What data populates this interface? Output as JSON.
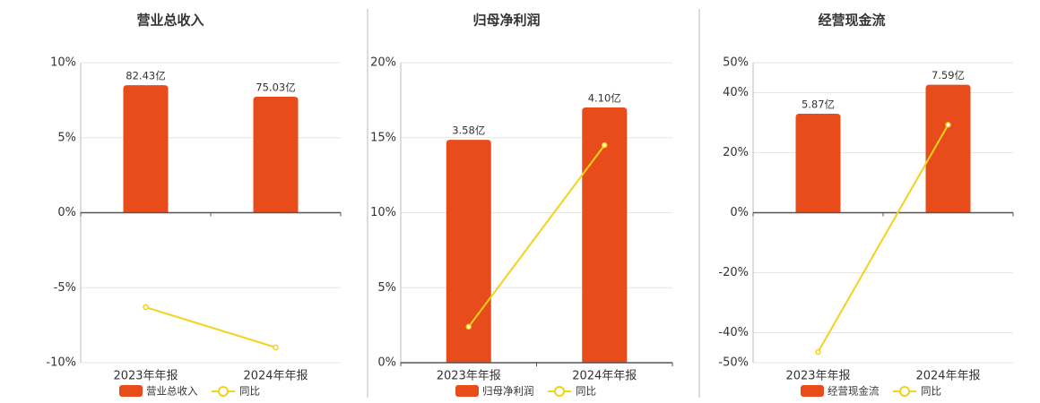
{
  "chart_data": [
    {
      "type": "bar-line",
      "title": "营业总收入",
      "categories": [
        "2023年年报",
        "2024年年报"
      ],
      "series": [
        {
          "name": "营业总收入",
          "color": "#e84c1a",
          "axis": "y2",
          "values": [
            82.43,
            75.03
          ],
          "value_labels": [
            "82.43亿",
            "75.03亿"
          ]
        },
        {
          "name": "同比",
          "color": "#f2d21a",
          "values": [
            -6.3,
            -8.98
          ]
        }
      ],
      "ylim": [
        -10,
        10
      ],
      "yticks": [
        {
          "value": -10,
          "label": "-10%"
        },
        {
          "value": -5,
          "label": "-5%"
        },
        {
          "value": 0,
          "label": "0%"
        },
        {
          "value": 5,
          "label": "5%"
        },
        {
          "value": 10,
          "label": "10%"
        }
      ],
      "y2lim": [
        -97,
        97
      ],
      "grid": true
    },
    {
      "type": "bar-line",
      "title": "归母净利润",
      "categories": [
        "2023年年报",
        "2024年年报"
      ],
      "series": [
        {
          "name": "归母净利润",
          "color": "#e84c1a",
          "axis": "y2",
          "values": [
            3.58,
            4.1
          ],
          "value_labels": [
            "3.58亿",
            "4.10亿"
          ]
        },
        {
          "name": "同比",
          "color": "#f2d21a",
          "values": [
            2.4,
            14.5
          ]
        }
      ],
      "ylim": [
        0,
        20
      ],
      "yticks": [
        {
          "value": 0,
          "label": "0%"
        },
        {
          "value": 5,
          "label": "5%"
        },
        {
          "value": 10,
          "label": "10%"
        },
        {
          "value": 15,
          "label": "15%"
        },
        {
          "value": 20,
          "label": "20%"
        }
      ],
      "y2lim": [
        0,
        4.82
      ],
      "grid": true
    },
    {
      "type": "bar-line",
      "title": "经营现金流",
      "categories": [
        "2023年年报",
        "2024年年报"
      ],
      "series": [
        {
          "name": "经营现金流",
          "color": "#e84c1a",
          "axis": "y2",
          "values": [
            5.87,
            7.59
          ],
          "value_labels": [
            "5.87亿",
            "7.59亿"
          ]
        },
        {
          "name": "同比",
          "color": "#f2d21a",
          "values": [
            -46.4,
            29.3
          ]
        }
      ],
      "ylim": [
        -50,
        50
      ],
      "yticks": [
        {
          "value": -50,
          "label": "-50%"
        },
        {
          "value": -40,
          "label": "-40%"
        },
        {
          "value": -20,
          "label": "-20%"
        },
        {
          "value": 0,
          "label": "0%"
        },
        {
          "value": 20,
          "label": "20%"
        },
        {
          "value": 40,
          "label": "40%"
        },
        {
          "value": 50,
          "label": "50%"
        }
      ],
      "y2lim": [
        -8.9,
        8.9
      ],
      "grid": true
    }
  ]
}
